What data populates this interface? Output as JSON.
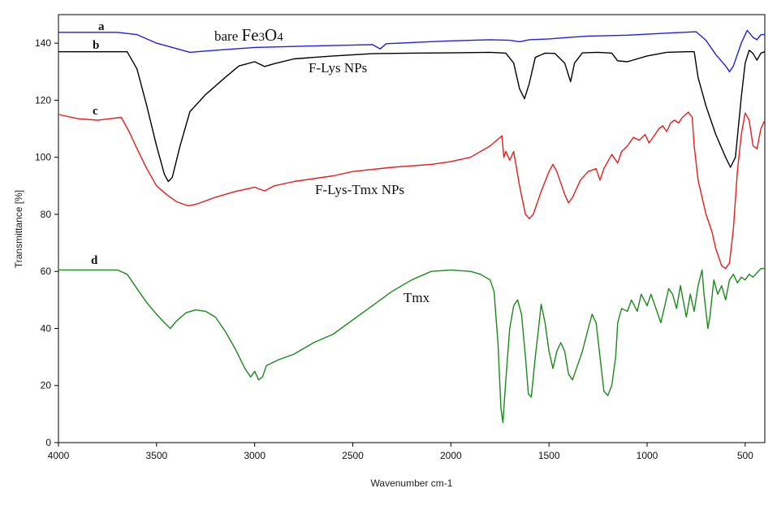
{
  "chart_data": {
    "type": "line",
    "title": "",
    "xlabel": "Wavenumber cm-1",
    "ylabel": "Transmittance [%]",
    "xlim": [
      4000,
      400
    ],
    "ylim": [
      0,
      150
    ],
    "x_ticks": [
      "4000",
      "3500",
      "3000",
      "2500",
      "2000",
      "1500",
      "1000",
      "500"
    ],
    "y_ticks": [
      "0",
      "20",
      "40",
      "60",
      "80",
      "100",
      "120",
      "140"
    ],
    "series": [
      {
        "letter": "a",
        "name": "bare Fe3O4",
        "color": "#1f1fe6",
        "points": [
          [
            4000,
            143.8
          ],
          [
            3700,
            143.8
          ],
          [
            3600,
            143
          ],
          [
            3500,
            140
          ],
          [
            3420,
            138.5
          ],
          [
            3330,
            136.8
          ],
          [
            3200,
            137.5
          ],
          [
            3000,
            138.5
          ],
          [
            2700,
            139
          ],
          [
            2400,
            139.5
          ],
          [
            2360,
            138
          ],
          [
            2330,
            139.8
          ],
          [
            2200,
            140.2
          ],
          [
            2000,
            140.8
          ],
          [
            1800,
            141.2
          ],
          [
            1700,
            141
          ],
          [
            1650,
            140.5
          ],
          [
            1600,
            141.2
          ],
          [
            1500,
            141.5
          ],
          [
            1400,
            142
          ],
          [
            1300,
            142.5
          ],
          [
            1100,
            142.8
          ],
          [
            900,
            143.5
          ],
          [
            750,
            144
          ],
          [
            700,
            141
          ],
          [
            650,
            136
          ],
          [
            600,
            132
          ],
          [
            580,
            130
          ],
          [
            560,
            132
          ],
          [
            520,
            140
          ],
          [
            490,
            144.5
          ],
          [
            460,
            142
          ],
          [
            440,
            141.2
          ],
          [
            420,
            143
          ],
          [
            400,
            143
          ]
        ]
      },
      {
        "letter": "b",
        "name": "F-Lys NPs",
        "color": "#000000",
        "points": [
          [
            4000,
            137
          ],
          [
            3650,
            137
          ],
          [
            3600,
            131
          ],
          [
            3550,
            118
          ],
          [
            3500,
            104
          ],
          [
            3460,
            94
          ],
          [
            3440,
            91.5
          ],
          [
            3420,
            93
          ],
          [
            3380,
            104
          ],
          [
            3330,
            116
          ],
          [
            3250,
            122
          ],
          [
            3150,
            128
          ],
          [
            3080,
            132
          ],
          [
            3000,
            133.5
          ],
          [
            2950,
            131.8
          ],
          [
            2900,
            132.8
          ],
          [
            2800,
            134.5
          ],
          [
            2600,
            135.5
          ],
          [
            2400,
            136.3
          ],
          [
            2200,
            136.5
          ],
          [
            2000,
            136.6
          ],
          [
            1800,
            136.8
          ],
          [
            1720,
            136.5
          ],
          [
            1680,
            133
          ],
          [
            1650,
            124
          ],
          [
            1625,
            120.5
          ],
          [
            1600,
            126
          ],
          [
            1570,
            135
          ],
          [
            1520,
            136.5
          ],
          [
            1470,
            136.4
          ],
          [
            1420,
            133
          ],
          [
            1390,
            126.5
          ],
          [
            1370,
            133
          ],
          [
            1330,
            136.6
          ],
          [
            1250,
            136.8
          ],
          [
            1180,
            136.5
          ],
          [
            1150,
            133.8
          ],
          [
            1100,
            133.5
          ],
          [
            1000,
            135.5
          ],
          [
            900,
            136.8
          ],
          [
            800,
            137
          ],
          [
            760,
            137
          ],
          [
            740,
            128
          ],
          [
            700,
            118
          ],
          [
            650,
            108
          ],
          [
            600,
            100
          ],
          [
            575,
            96.5
          ],
          [
            550,
            100
          ],
          [
            520,
            121
          ],
          [
            500,
            133
          ],
          [
            480,
            137.5
          ],
          [
            460,
            136.4
          ],
          [
            440,
            134
          ],
          [
            420,
            136.5
          ],
          [
            400,
            137
          ]
        ]
      },
      {
        "letter": "c",
        "name": "F-Lys-Tmx NPs",
        "color": "#e81c1c",
        "points": [
          [
            4000,
            115
          ],
          [
            3900,
            113.5
          ],
          [
            3800,
            113
          ],
          [
            3680,
            114
          ],
          [
            3640,
            109
          ],
          [
            3600,
            103
          ],
          [
            3550,
            96
          ],
          [
            3500,
            90
          ],
          [
            3450,
            87
          ],
          [
            3400,
            84.5
          ],
          [
            3340,
            83
          ],
          [
            3300,
            83.5
          ],
          [
            3200,
            86
          ],
          [
            3100,
            88
          ],
          [
            3000,
            89.5
          ],
          [
            2950,
            88.2
          ],
          [
            2900,
            90
          ],
          [
            2800,
            91.5
          ],
          [
            2700,
            92.5
          ],
          [
            2600,
            93.5
          ],
          [
            2500,
            95
          ],
          [
            2300,
            96.5
          ],
          [
            2100,
            97.5
          ],
          [
            2000,
            98.5
          ],
          [
            1900,
            100
          ],
          [
            1800,
            104
          ],
          [
            1740,
            107.5
          ],
          [
            1730,
            100
          ],
          [
            1720,
            102
          ],
          [
            1700,
            99
          ],
          [
            1680,
            102
          ],
          [
            1650,
            90
          ],
          [
            1620,
            80
          ],
          [
            1600,
            78.5
          ],
          [
            1580,
            80
          ],
          [
            1540,
            88
          ],
          [
            1500,
            95
          ],
          [
            1480,
            97.5
          ],
          [
            1460,
            95
          ],
          [
            1420,
            87
          ],
          [
            1400,
            84
          ],
          [
            1380,
            86
          ],
          [
            1340,
            92
          ],
          [
            1300,
            95
          ],
          [
            1260,
            96
          ],
          [
            1240,
            92
          ],
          [
            1220,
            96
          ],
          [
            1180,
            101
          ],
          [
            1150,
            98
          ],
          [
            1130,
            102
          ],
          [
            1100,
            104
          ],
          [
            1070,
            107
          ],
          [
            1040,
            106
          ],
          [
            1010,
            108
          ],
          [
            990,
            105
          ],
          [
            960,
            108
          ],
          [
            940,
            110
          ],
          [
            920,
            111
          ],
          [
            900,
            109
          ],
          [
            880,
            112
          ],
          [
            860,
            113
          ],
          [
            840,
            112
          ],
          [
            820,
            114
          ],
          [
            790,
            115.8
          ],
          [
            770,
            114
          ],
          [
            760,
            104
          ],
          [
            740,
            92
          ],
          [
            700,
            80
          ],
          [
            670,
            74
          ],
          [
            650,
            68
          ],
          [
            620,
            62
          ],
          [
            600,
            61
          ],
          [
            580,
            63
          ],
          [
            560,
            75
          ],
          [
            540,
            95
          ],
          [
            520,
            108
          ],
          [
            500,
            115.5
          ],
          [
            480,
            113
          ],
          [
            460,
            104
          ],
          [
            440,
            103
          ],
          [
            420,
            110
          ],
          [
            400,
            113
          ]
        ]
      },
      {
        "letter": "d",
        "name": "Tmx",
        "color": "#1a8a1a",
        "points": [
          [
            4000,
            60.5
          ],
          [
            3700,
            60.5
          ],
          [
            3650,
            59
          ],
          [
            3600,
            54
          ],
          [
            3550,
            49
          ],
          [
            3500,
            45
          ],
          [
            3460,
            42
          ],
          [
            3430,
            40
          ],
          [
            3400,
            42.5
          ],
          [
            3350,
            45.5
          ],
          [
            3300,
            46.5
          ],
          [
            3250,
            46
          ],
          [
            3200,
            44
          ],
          [
            3150,
            39
          ],
          [
            3100,
            33
          ],
          [
            3050,
            26
          ],
          [
            3020,
            23
          ],
          [
            3000,
            25
          ],
          [
            2980,
            22
          ],
          [
            2960,
            23
          ],
          [
            2940,
            27
          ],
          [
            2880,
            29
          ],
          [
            2800,
            31
          ],
          [
            2700,
            35
          ],
          [
            2600,
            38
          ],
          [
            2500,
            43
          ],
          [
            2400,
            48
          ],
          [
            2300,
            53
          ],
          [
            2200,
            57
          ],
          [
            2100,
            60
          ],
          [
            2000,
            60.5
          ],
          [
            1900,
            60
          ],
          [
            1850,
            59
          ],
          [
            1800,
            57
          ],
          [
            1780,
            53
          ],
          [
            1760,
            35
          ],
          [
            1745,
            12
          ],
          [
            1735,
            7
          ],
          [
            1720,
            22
          ],
          [
            1700,
            40
          ],
          [
            1680,
            48
          ],
          [
            1660,
            50
          ],
          [
            1640,
            45
          ],
          [
            1620,
            30
          ],
          [
            1605,
            17
          ],
          [
            1590,
            16
          ],
          [
            1570,
            30
          ],
          [
            1550,
            42
          ],
          [
            1540,
            48.5
          ],
          [
            1520,
            42
          ],
          [
            1500,
            32
          ],
          [
            1480,
            26
          ],
          [
            1460,
            32
          ],
          [
            1440,
            35
          ],
          [
            1420,
            32
          ],
          [
            1400,
            24
          ],
          [
            1380,
            22
          ],
          [
            1360,
            26
          ],
          [
            1330,
            32
          ],
          [
            1300,
            40
          ],
          [
            1280,
            45
          ],
          [
            1260,
            42
          ],
          [
            1240,
            30
          ],
          [
            1220,
            18
          ],
          [
            1200,
            16.5
          ],
          [
            1180,
            20
          ],
          [
            1160,
            30
          ],
          [
            1150,
            42
          ],
          [
            1130,
            47
          ],
          [
            1100,
            46
          ],
          [
            1080,
            50
          ],
          [
            1050,
            46
          ],
          [
            1030,
            52
          ],
          [
            1000,
            48
          ],
          [
            980,
            52
          ],
          [
            950,
            46
          ],
          [
            930,
            42
          ],
          [
            910,
            48
          ],
          [
            890,
            54
          ],
          [
            870,
            52
          ],
          [
            850,
            47
          ],
          [
            830,
            55
          ],
          [
            800,
            44
          ],
          [
            780,
            52
          ],
          [
            760,
            46
          ],
          [
            740,
            55
          ],
          [
            720,
            60.5
          ],
          [
            710,
            52
          ],
          [
            690,
            40
          ],
          [
            680,
            44
          ],
          [
            660,
            57
          ],
          [
            640,
            52
          ],
          [
            620,
            55
          ],
          [
            600,
            50
          ],
          [
            580,
            57
          ],
          [
            560,
            59
          ],
          [
            540,
            56
          ],
          [
            520,
            58
          ],
          [
            500,
            57
          ],
          [
            480,
            59
          ],
          [
            460,
            58
          ],
          [
            440,
            59.5
          ],
          [
            420,
            61
          ],
          [
            400,
            61
          ]
        ]
      }
    ]
  }
}
